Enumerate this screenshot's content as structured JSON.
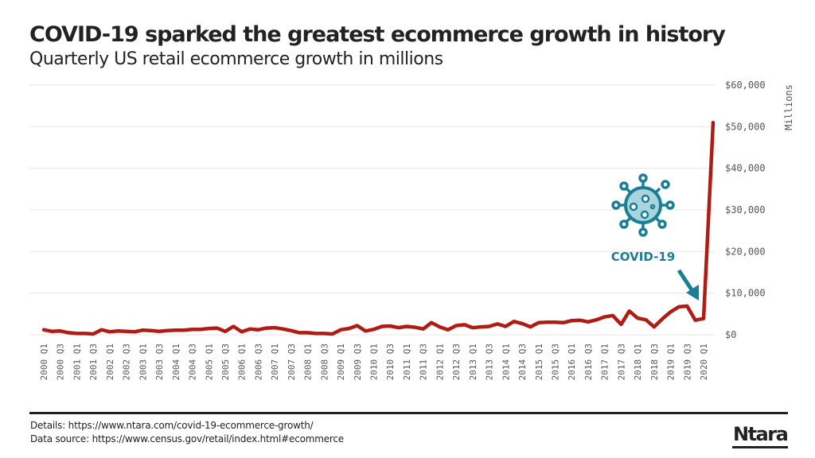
{
  "header": {
    "title": "COVID-19 sparked the greatest ecommerce growth in history",
    "subtitle": "Quarterly US retail ecommerce growth in millions"
  },
  "footer": {
    "details": "Details: https://www.ntara.com/covid-19-ecommerce-growth/",
    "source": "Data source: https://www.census.gov/retail/index.html#ecommerce",
    "logo": "Ntara"
  },
  "annotation": {
    "label": "COVID-19",
    "icon": "virus-icon",
    "color": "#1a7f95"
  },
  "colors": {
    "line": "#b01c14",
    "grid": "#e6e6e6",
    "axis_text": "#555555",
    "text": "#222222"
  },
  "chart_data": {
    "type": "line",
    "title": "COVID-19 sparked the greatest ecommerce growth in history",
    "subtitle": "Quarterly US retail ecommerce growth in millions",
    "xlabel": "",
    "ylabel": "Millions",
    "y_axis_position": "right",
    "ylim": [
      0,
      60000
    ],
    "yticks": [
      0,
      10000,
      20000,
      30000,
      40000,
      50000,
      60000
    ],
    "ytick_labels": [
      "$0",
      "$10,000",
      "$20,000",
      "$30,000",
      "$40,000",
      "$50,000",
      "$60,000"
    ],
    "grid": true,
    "legend": "none",
    "x": [
      "2000 Q1",
      "2000 Q2",
      "2000 Q3",
      "2000 Q4",
      "2001 Q1",
      "2001 Q2",
      "2001 Q3",
      "2001 Q4",
      "2002 Q1",
      "2002 Q2",
      "2002 Q3",
      "2002 Q4",
      "2003 Q1",
      "2003 Q2",
      "2003 Q3",
      "2003 Q4",
      "2004 Q1",
      "2004 Q2",
      "2004 Q3",
      "2004 Q4",
      "2005 Q1",
      "2005 Q2",
      "2005 Q3",
      "2005 Q4",
      "2006 Q1",
      "2006 Q2",
      "2006 Q3",
      "2006 Q4",
      "2007 Q1",
      "2007 Q2",
      "2007 Q3",
      "2007 Q4",
      "2008 Q1",
      "2008 Q2",
      "2008 Q3",
      "2008 Q4",
      "2009 Q1",
      "2009 Q2",
      "2009 Q3",
      "2009 Q4",
      "2010 Q1",
      "2010 Q2",
      "2010 Q3",
      "2010 Q4",
      "2011 Q1",
      "2011 Q2",
      "2011 Q3",
      "2011 Q4",
      "2012 Q1",
      "2012 Q2",
      "2012 Q3",
      "2012 Q4",
      "2013 Q1",
      "2013 Q2",
      "2013 Q3",
      "2013 Q4",
      "2014 Q1",
      "2014 Q2",
      "2014 Q3",
      "2014 Q4",
      "2015 Q1",
      "2015 Q2",
      "2015 Q3",
      "2015 Q4",
      "2016 Q1",
      "2016 Q2",
      "2016 Q3",
      "2016 Q4",
      "2017 Q1",
      "2017 Q2",
      "2017 Q3",
      "2017 Q4",
      "2018 Q1",
      "2018 Q2",
      "2018 Q3",
      "2018 Q4",
      "2019 Q1",
      "2019 Q2",
      "2019 Q3",
      "2019 Q4",
      "2020 Q1",
      "2020 Q2"
    ],
    "xtick_labels": [
      "2000 Q1",
      "2000 Q3",
      "2001 Q1",
      "2001 Q3",
      "2002 Q1",
      "2002 Q3",
      "2003 Q1",
      "2003 Q3",
      "2004 Q1",
      "2004 Q3",
      "2005 Q1",
      "2005 Q3",
      "2006 Q1",
      "2006 Q3",
      "2007 Q1",
      "2007 Q3",
      "2008 Q1",
      "2008 Q3",
      "2009 Q1",
      "2009 Q3",
      "2010 Q1",
      "2010 Q3",
      "2011 Q1",
      "2011 Q3",
      "2012 Q1",
      "2012 Q3",
      "2013 Q1",
      "2013 Q3",
      "2014 Q1",
      "2014 Q3",
      "2015 Q1",
      "2015 Q3",
      "2016 Q1",
      "2016 Q3",
      "2017 Q1",
      "2017 Q3",
      "2018 Q1",
      "2018 Q3",
      "2019 Q1",
      "2019 Q3",
      "2020 Q1"
    ],
    "series": [
      {
        "name": "Quarterly US retail ecommerce growth",
        "values": [
          1200,
          800,
          900,
          500,
          300,
          300,
          200,
          1200,
          700,
          900,
          800,
          700,
          1100,
          1000,
          800,
          1000,
          1100,
          1100,
          1300,
          1300,
          1500,
          1600,
          800,
          2000,
          700,
          1400,
          1200,
          1600,
          1700,
          1400,
          1000,
          500,
          500,
          300,
          300,
          200,
          1200,
          1500,
          2200,
          900,
          1300,
          2000,
          2100,
          1700,
          2000,
          1800,
          1400,
          2900,
          1900,
          1200,
          2200,
          2400,
          1700,
          1900,
          2000,
          2600,
          2000,
          3200,
          2700,
          1900,
          2900,
          3000,
          3000,
          2900,
          3400,
          3500,
          3100,
          3600,
          4300,
          4600,
          2500,
          5700,
          4000,
          3600,
          1900,
          3800,
          5500,
          6700,
          6900,
          3500,
          3900,
          51000
        ]
      }
    ]
  }
}
